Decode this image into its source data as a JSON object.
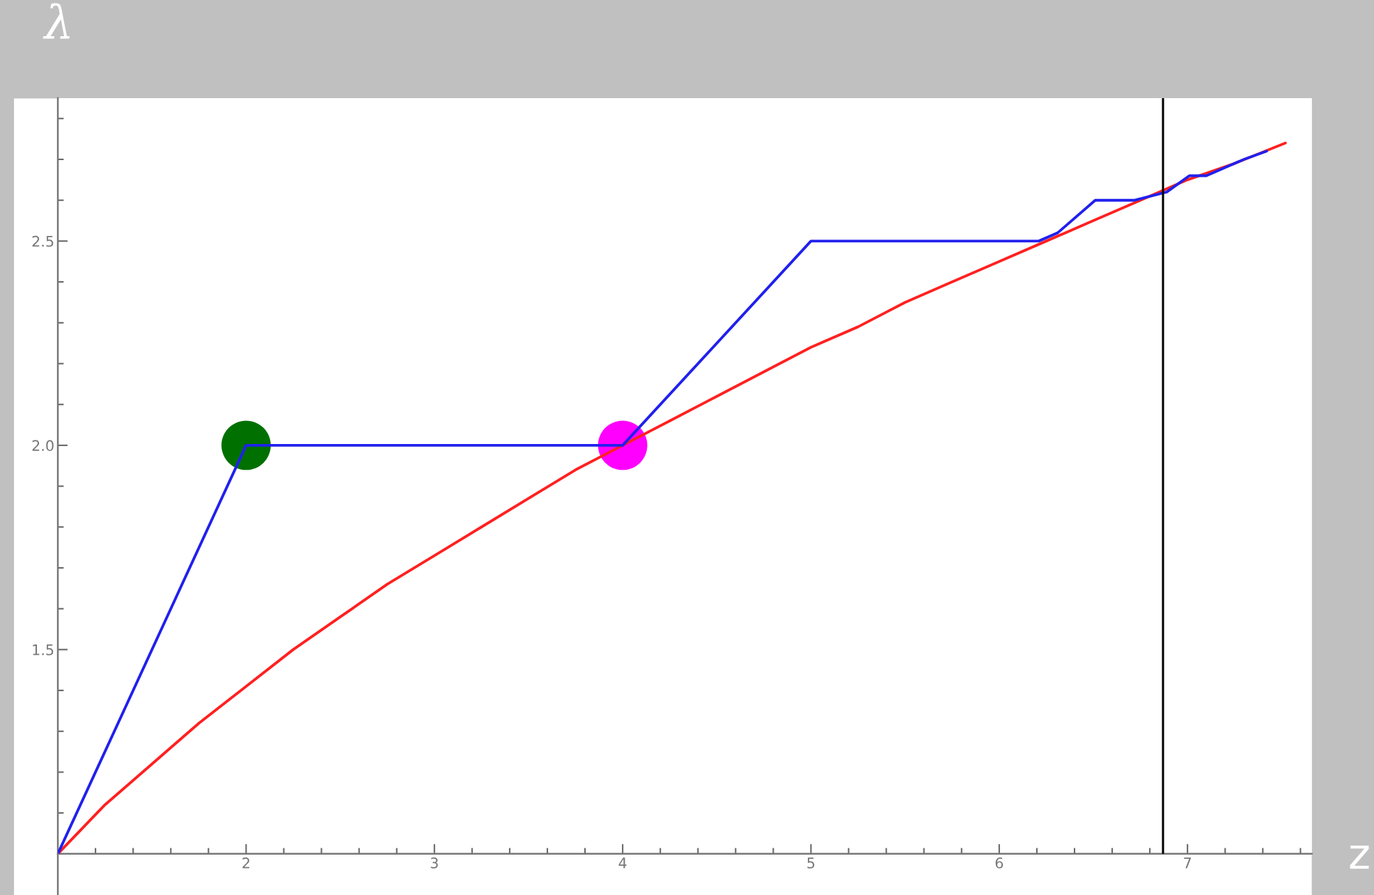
{
  "chart_data": {
    "type": "line",
    "xlabel": "z",
    "ylabel": "λ",
    "xlim": [
      1,
      7.66
    ],
    "ylim": [
      1,
      2.85
    ],
    "xticks": [
      2,
      3,
      4,
      5,
      6,
      7,
      {
        "value": 1.2,
        "label": null
      },
      {
        "value": 1.4,
        "label": null
      },
      {
        "value": 1.6,
        "label": null
      },
      {
        "value": 1.8,
        "label": null
      },
      {
        "value": 2.2,
        "label": null
      },
      {
        "value": 2.4,
        "label": null
      },
      {
        "value": 2.6,
        "label": null
      },
      {
        "value": 2.8,
        "label": null
      },
      {
        "value": 3.2,
        "label": null
      },
      {
        "value": 3.4,
        "label": null
      },
      {
        "value": 3.6,
        "label": null
      },
      {
        "value": 3.8,
        "label": null
      },
      {
        "value": 4.2,
        "label": null
      },
      {
        "value": 4.4,
        "label": null
      },
      {
        "value": 4.6,
        "label": null
      },
      {
        "value": 4.8,
        "label": null
      },
      {
        "value": 5.2,
        "label": null
      },
      {
        "value": 5.4,
        "label": null
      },
      {
        "value": 5.6,
        "label": null
      },
      {
        "value": 5.8,
        "label": null
      },
      {
        "value": 6.2,
        "label": null
      },
      {
        "value": 6.4,
        "label": null
      },
      {
        "value": 6.6,
        "label": null
      },
      {
        "value": 6.8,
        "label": null
      },
      {
        "value": 7.2,
        "label": null
      },
      {
        "value": 7.4,
        "label": null
      },
      {
        "value": 7.6,
        "label": null
      }
    ],
    "yticks": [
      {
        "value": 1.5,
        "label": "1.5"
      },
      {
        "value": 2.0,
        "label": "2.0"
      },
      {
        "value": 2.5,
        "label": "2.5"
      },
      {
        "value": 1.1,
        "label": null
      },
      {
        "value": 1.2,
        "label": null
      },
      {
        "value": 1.3,
        "label": null
      },
      {
        "value": 1.4,
        "label": null
      },
      {
        "value": 1.6,
        "label": null
      },
      {
        "value": 1.7,
        "label": null
      },
      {
        "value": 1.8,
        "label": null
      },
      {
        "value": 1.9,
        "label": null
      },
      {
        "value": 2.1,
        "label": null
      },
      {
        "value": 2.2,
        "label": null
      },
      {
        "value": 2.3,
        "label": null
      },
      {
        "value": 2.4,
        "label": null
      },
      {
        "value": 2.6,
        "label": null
      },
      {
        "value": 2.7,
        "label": null
      },
      {
        "value": 2.8,
        "label": null
      }
    ],
    "grid": false,
    "legend": false,
    "ref_lines": [
      {
        "axis": "x",
        "value": 6.87,
        "color": "#000000"
      }
    ],
    "series": [
      {
        "type": "line",
        "color": "#ff2020",
        "x": [
          1,
          1.25,
          1.5,
          1.75,
          2,
          2.25,
          2.5,
          2.75,
          3,
          3.25,
          3.5,
          3.75,
          4,
          4.25,
          4.5,
          4.75,
          5,
          5.25,
          5.5,
          5.75,
          6,
          6.25,
          6.5,
          6.75,
          7,
          7.25,
          7.52
        ],
        "values": [
          1,
          1.12,
          1.22,
          1.32,
          1.41,
          1.5,
          1.58,
          1.66,
          1.73,
          1.8,
          1.87,
          1.94,
          2,
          2.06,
          2.12,
          2.18,
          2.24,
          2.29,
          2.35,
          2.4,
          2.45,
          2.5,
          2.55,
          2.6,
          2.65,
          2.69,
          2.74
        ]
      },
      {
        "type": "line",
        "color": "#2020ee",
        "x": [
          1,
          2,
          4,
          5,
          6.21,
          6.31,
          6.51,
          6.72,
          6.89,
          7.01,
          7.1,
          7.3,
          7.42
        ],
        "values": [
          1,
          2,
          2,
          2.5,
          2.5,
          2.52,
          2.6,
          2.6,
          2.62,
          2.66,
          2.66,
          2.7,
          2.72
        ]
      },
      {
        "type": "scatter",
        "color": "#007000",
        "x": [
          2
        ],
        "values": [
          2
        ],
        "marker": "circle"
      },
      {
        "type": "scatter",
        "color": "#ff00ff",
        "x": [
          4
        ],
        "values": [
          2
        ],
        "marker": "circle"
      }
    ]
  }
}
